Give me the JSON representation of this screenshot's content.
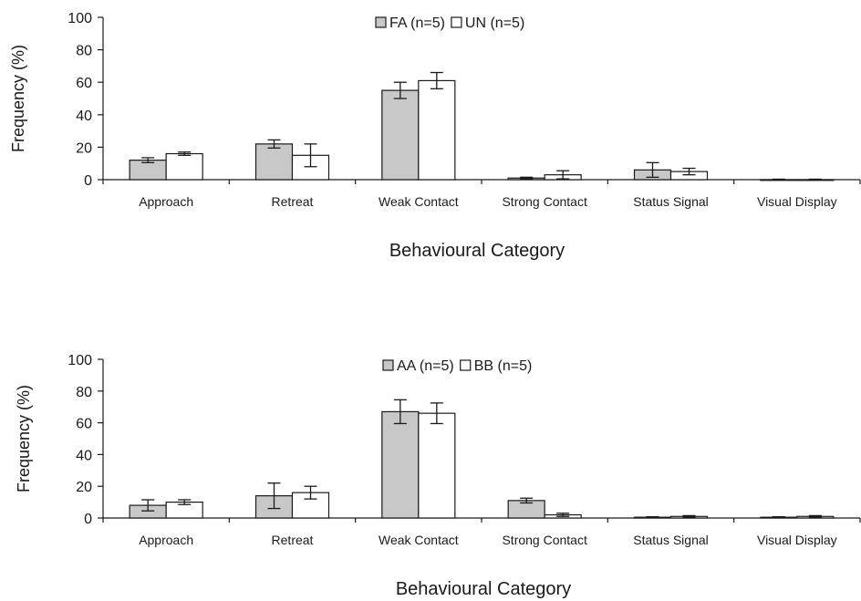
{
  "colors": {
    "filled": "#c8c8c8",
    "open": "#ffffff",
    "stroke": "#1a1a1a"
  },
  "chart_data": [
    {
      "type": "bar",
      "title": "",
      "xlabel": "Behavioural Category",
      "ylabel": "Frequency (%)",
      "ylim": [
        0,
        100
      ],
      "yticks": [
        0,
        20,
        40,
        60,
        80,
        100
      ],
      "grid": false,
      "legend": "top-center",
      "categories": [
        "Approach",
        "Retreat",
        "Weak Contact",
        "Strong Contact",
        "Status Signal",
        "Visual Display"
      ],
      "series": [
        {
          "name": "FA (n=5)",
          "fill": "#c8c8c8",
          "values": [
            12,
            22,
            55,
            1,
            6,
            0
          ],
          "errors": [
            1.5,
            2.5,
            5,
            0.5,
            4.5,
            0.3
          ]
        },
        {
          "name": "UN (n=5)",
          "fill": "#ffffff",
          "values": [
            16,
            15,
            61,
            3,
            5,
            0
          ],
          "errors": [
            1,
            7,
            5,
            2.5,
            2,
            0.3
          ]
        }
      ]
    },
    {
      "type": "bar",
      "title": "",
      "xlabel": "Behavioural Category",
      "ylabel": "Frequency (%)",
      "ylim": [
        0,
        100
      ],
      "yticks": [
        0,
        20,
        40,
        60,
        80,
        100
      ],
      "grid": false,
      "legend": "top-center",
      "categories": [
        "Approach",
        "Retreat",
        "Weak Contact",
        "Strong Contact",
        "Status Signal",
        "Visual Display"
      ],
      "series": [
        {
          "name": "AA (n=5)",
          "fill": "#c8c8c8",
          "values": [
            8,
            14,
            67,
            11,
            0.5,
            0.5
          ],
          "errors": [
            3.5,
            8,
            7.5,
            1.5,
            0.3,
            0.3
          ]
        },
        {
          "name": "BB (n=5)",
          "fill": "#ffffff",
          "values": [
            10,
            16,
            66,
            2,
            1,
            1
          ],
          "errors": [
            1.5,
            4,
            6.5,
            1,
            0.5,
            0.5
          ]
        }
      ]
    }
  ]
}
